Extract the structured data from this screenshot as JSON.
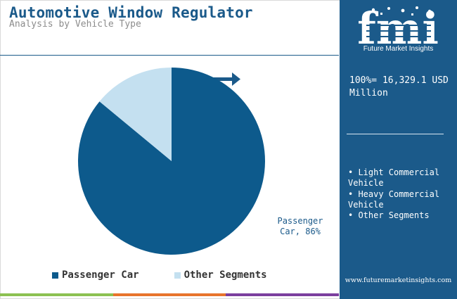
{
  "header": {
    "title": "Automotive Window Regulator",
    "subtitle": "Analysis by Vehicle Type"
  },
  "chart_data": {
    "type": "pie",
    "categories": [
      "Passenger Car",
      "Other Segments"
    ],
    "values": [
      86,
      14
    ],
    "unit": "%",
    "colors": [
      "#0d5a8c",
      "#c4e0f0"
    ],
    "data_labels": {
      "Passenger Car": "Passenger Car, 86%"
    },
    "start_angle_deg": 0,
    "direction": "clockwise",
    "legend_position": "bottom-left",
    "legend": [
      "Passenger Car",
      "Other Segments"
    ]
  },
  "legend": {
    "items": [
      {
        "label": "Passenger Car",
        "color": "#0d5a8c"
      },
      {
        "label": "Other Segments",
        "color": "#c4e0f0"
      }
    ]
  },
  "slice_label": {
    "line1": "Passenger",
    "line2": "Car, 86%"
  },
  "side_panel": {
    "logo_text": "Future Market Insights",
    "logo_letters": "fmi",
    "total_label": "100%= 16,329.1 USD Million",
    "segments": [
      "• Light Commercial Vehicle",
      "• Heavy Commercial Vehicle",
      "• Other Segments"
    ],
    "website": "www.futuremarketinsights.com"
  },
  "colors": {
    "brand_blue": "#1b5a8a",
    "pie_main": "#0d5a8c",
    "pie_other": "#c4e0f0",
    "bottom_bar": [
      "#8cc152",
      "#e8742c",
      "#7b3f9e"
    ]
  }
}
